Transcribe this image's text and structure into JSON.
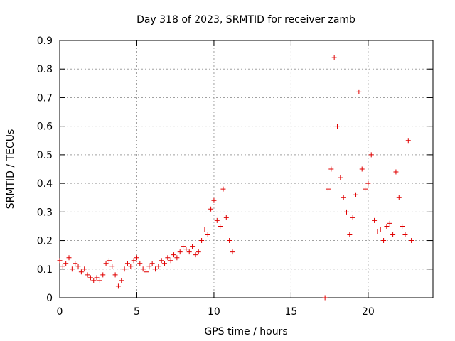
{
  "chart_data": {
    "type": "scatter",
    "title": "Day 318 of 2023, SRMTID for receiver zamb",
    "xlabel": "GPS time / hours",
    "ylabel": "SRMTID / TECUs",
    "xlim": [
      0,
      24.2
    ],
    "ylim": [
      0,
      0.9
    ],
    "xticks": [
      0,
      5,
      10,
      15,
      20
    ],
    "xtick_labels": [
      "0",
      "5",
      "10",
      "15",
      "20"
    ],
    "yticks": [
      0,
      0.1,
      0.2,
      0.3,
      0.4,
      0.5,
      0.6,
      0.7,
      0.8,
      0.9
    ],
    "ytick_labels": [
      "0",
      "0.1",
      "0.2",
      "0.3",
      "0.4",
      "0.5",
      "0.6",
      "0.7",
      "0.8",
      "0.9"
    ],
    "grid": true,
    "marker": "+",
    "color": "#e00000",
    "series": [
      {
        "name": "SRMTID",
        "x": [
          0.0,
          0.2,
          0.4,
          0.6,
          0.8,
          1.0,
          1.2,
          1.4,
          1.6,
          1.8,
          2.0,
          2.2,
          2.4,
          2.6,
          2.8,
          3.0,
          3.2,
          3.4,
          3.6,
          3.8,
          4.0,
          4.2,
          4.4,
          4.6,
          4.8,
          5.0,
          5.2,
          5.4,
          5.6,
          5.8,
          6.0,
          6.2,
          6.4,
          6.6,
          6.8,
          7.0,
          7.2,
          7.4,
          7.6,
          7.8,
          8.0,
          8.2,
          8.4,
          8.6,
          8.8,
          9.0,
          9.2,
          9.4,
          9.6,
          9.8,
          10.0,
          10.2,
          10.4,
          10.6,
          10.8,
          11.0,
          11.2,
          17.2,
          17.4,
          17.6,
          17.8,
          18.0,
          18.2,
          18.4,
          18.6,
          18.8,
          19.0,
          19.2,
          19.4,
          19.6,
          19.8,
          20.0,
          20.2,
          20.4,
          20.6,
          20.8,
          21.0,
          21.2,
          21.4,
          21.6,
          21.8,
          22.0,
          22.2,
          22.4,
          22.6,
          22.8
        ],
        "y": [
          0.13,
          0.11,
          0.12,
          0.14,
          0.1,
          0.12,
          0.11,
          0.09,
          0.1,
          0.08,
          0.07,
          0.06,
          0.07,
          0.06,
          0.08,
          0.12,
          0.13,
          0.11,
          0.08,
          0.04,
          0.06,
          0.1,
          0.12,
          0.11,
          0.13,
          0.14,
          0.12,
          0.1,
          0.09,
          0.11,
          0.12,
          0.1,
          0.11,
          0.13,
          0.12,
          0.14,
          0.13,
          0.15,
          0.14,
          0.16,
          0.18,
          0.17,
          0.16,
          0.18,
          0.15,
          0.16,
          0.2,
          0.24,
          0.22,
          0.31,
          0.34,
          0.27,
          0.25,
          0.38,
          0.28,
          0.2,
          0.16,
          0.0,
          0.38,
          0.45,
          0.84,
          0.6,
          0.42,
          0.35,
          0.3,
          0.22,
          0.28,
          0.36,
          0.72,
          0.45,
          0.38,
          0.4,
          0.5,
          0.27,
          0.23,
          0.24,
          0.2,
          0.25,
          0.26,
          0.22,
          0.44,
          0.35,
          0.25,
          0.22,
          0.55,
          0.2
        ]
      }
    ]
  }
}
